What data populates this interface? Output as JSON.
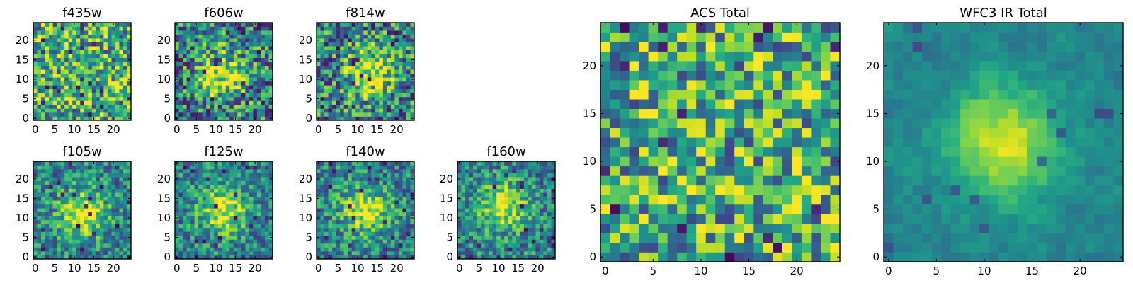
{
  "figure": {
    "description_free": true
  },
  "chart_data": [
    {
      "id": "f435w",
      "type": "heatmap",
      "title": "f435w",
      "grid": 25,
      "colormap": "viridis",
      "xticks": [
        "0",
        "5",
        "10",
        "15",
        "20"
      ],
      "yticks": [
        "0",
        "5",
        "10",
        "15",
        "20"
      ],
      "xlim": [
        0,
        25
      ],
      "ylim": [
        0,
        25
      ],
      "peak": null,
      "noise": "high",
      "seed": 11
    },
    {
      "id": "f606w",
      "type": "heatmap",
      "title": "f606w",
      "grid": 25,
      "colormap": "viridis",
      "xticks": [
        "0",
        "5",
        "10",
        "15",
        "20"
      ],
      "yticks": [
        "0",
        "5",
        "10",
        "15",
        "20"
      ],
      "xlim": [
        0,
        25
      ],
      "ylim": [
        0,
        25
      ],
      "peak": [
        11,
        11
      ],
      "noise": "high",
      "seed": 23
    },
    {
      "id": "f814w",
      "type": "heatmap",
      "title": "f814w",
      "grid": 25,
      "colormap": "viridis",
      "xticks": [
        "0",
        "5",
        "10",
        "15",
        "20"
      ],
      "yticks": [
        "0",
        "5",
        "10",
        "15",
        "20"
      ],
      "xlim": [
        0,
        25
      ],
      "ylim": [
        0,
        25
      ],
      "peak": [
        13,
        12
      ],
      "noise": "high",
      "seed": 37
    },
    {
      "id": "f105w",
      "type": "heatmap",
      "title": "f105w",
      "grid": 25,
      "colormap": "viridis",
      "xticks": [
        "0",
        "5",
        "10",
        "15",
        "20"
      ],
      "yticks": [
        "0",
        "5",
        "10",
        "15",
        "20"
      ],
      "xlim": [
        0,
        25
      ],
      "ylim": [
        0,
        25
      ],
      "peak": [
        12,
        11
      ],
      "noise": "medium",
      "seed": 41
    },
    {
      "id": "f125w",
      "type": "heatmap",
      "title": "f125w",
      "grid": 25,
      "colormap": "viridis",
      "xticks": [
        "0",
        "5",
        "10",
        "15",
        "20"
      ],
      "yticks": [
        "0",
        "5",
        "10",
        "15",
        "20"
      ],
      "xlim": [
        0,
        25
      ],
      "ylim": [
        0,
        25
      ],
      "peak": [
        12,
        12
      ],
      "noise": "medium",
      "seed": 53
    },
    {
      "id": "f140w",
      "type": "heatmap",
      "title": "f140w",
      "grid": 25,
      "colormap": "viridis",
      "xticks": [
        "0",
        "5",
        "10",
        "15",
        "20"
      ],
      "yticks": [
        "0",
        "5",
        "10",
        "15",
        "20"
      ],
      "xlim": [
        0,
        25
      ],
      "ylim": [
        0,
        25
      ],
      "peak": [
        12,
        12
      ],
      "noise": "medium",
      "seed": 67
    },
    {
      "id": "f160w",
      "type": "heatmap",
      "title": "f160w",
      "grid": 25,
      "colormap": "viridis",
      "xticks": [
        "0",
        "5",
        "10",
        "15",
        "20"
      ],
      "yticks": [
        "0",
        "5",
        "10",
        "15",
        "20"
      ],
      "xlim": [
        0,
        25
      ],
      "ylim": [
        0,
        25
      ],
      "peak": [
        11,
        13
      ],
      "noise": "medium",
      "seed": 79
    },
    {
      "id": "acs-total",
      "type": "heatmap",
      "title": "ACS Total",
      "grid": 25,
      "colormap": "viridis",
      "xticks": [
        "0",
        "5",
        "10",
        "15",
        "20"
      ],
      "yticks": [
        "0",
        "5",
        "10",
        "15",
        "20"
      ],
      "xlim": [
        0,
        25
      ],
      "ylim": [
        0,
        25
      ],
      "peak": null,
      "noise": "high",
      "seed": 97
    },
    {
      "id": "wfc3-ir-total",
      "type": "heatmap",
      "title": "WFC3 IR Total",
      "grid": 25,
      "colormap": "viridis",
      "xticks": [
        "0",
        "5",
        "10",
        "15",
        "20"
      ],
      "yticks": [
        "0",
        "5",
        "10",
        "15",
        "20"
      ],
      "xlim": [
        0,
        25
      ],
      "ylim": [
        0,
        25
      ],
      "peak": [
        12,
        12
      ],
      "noise": "low",
      "seed": 101
    }
  ]
}
